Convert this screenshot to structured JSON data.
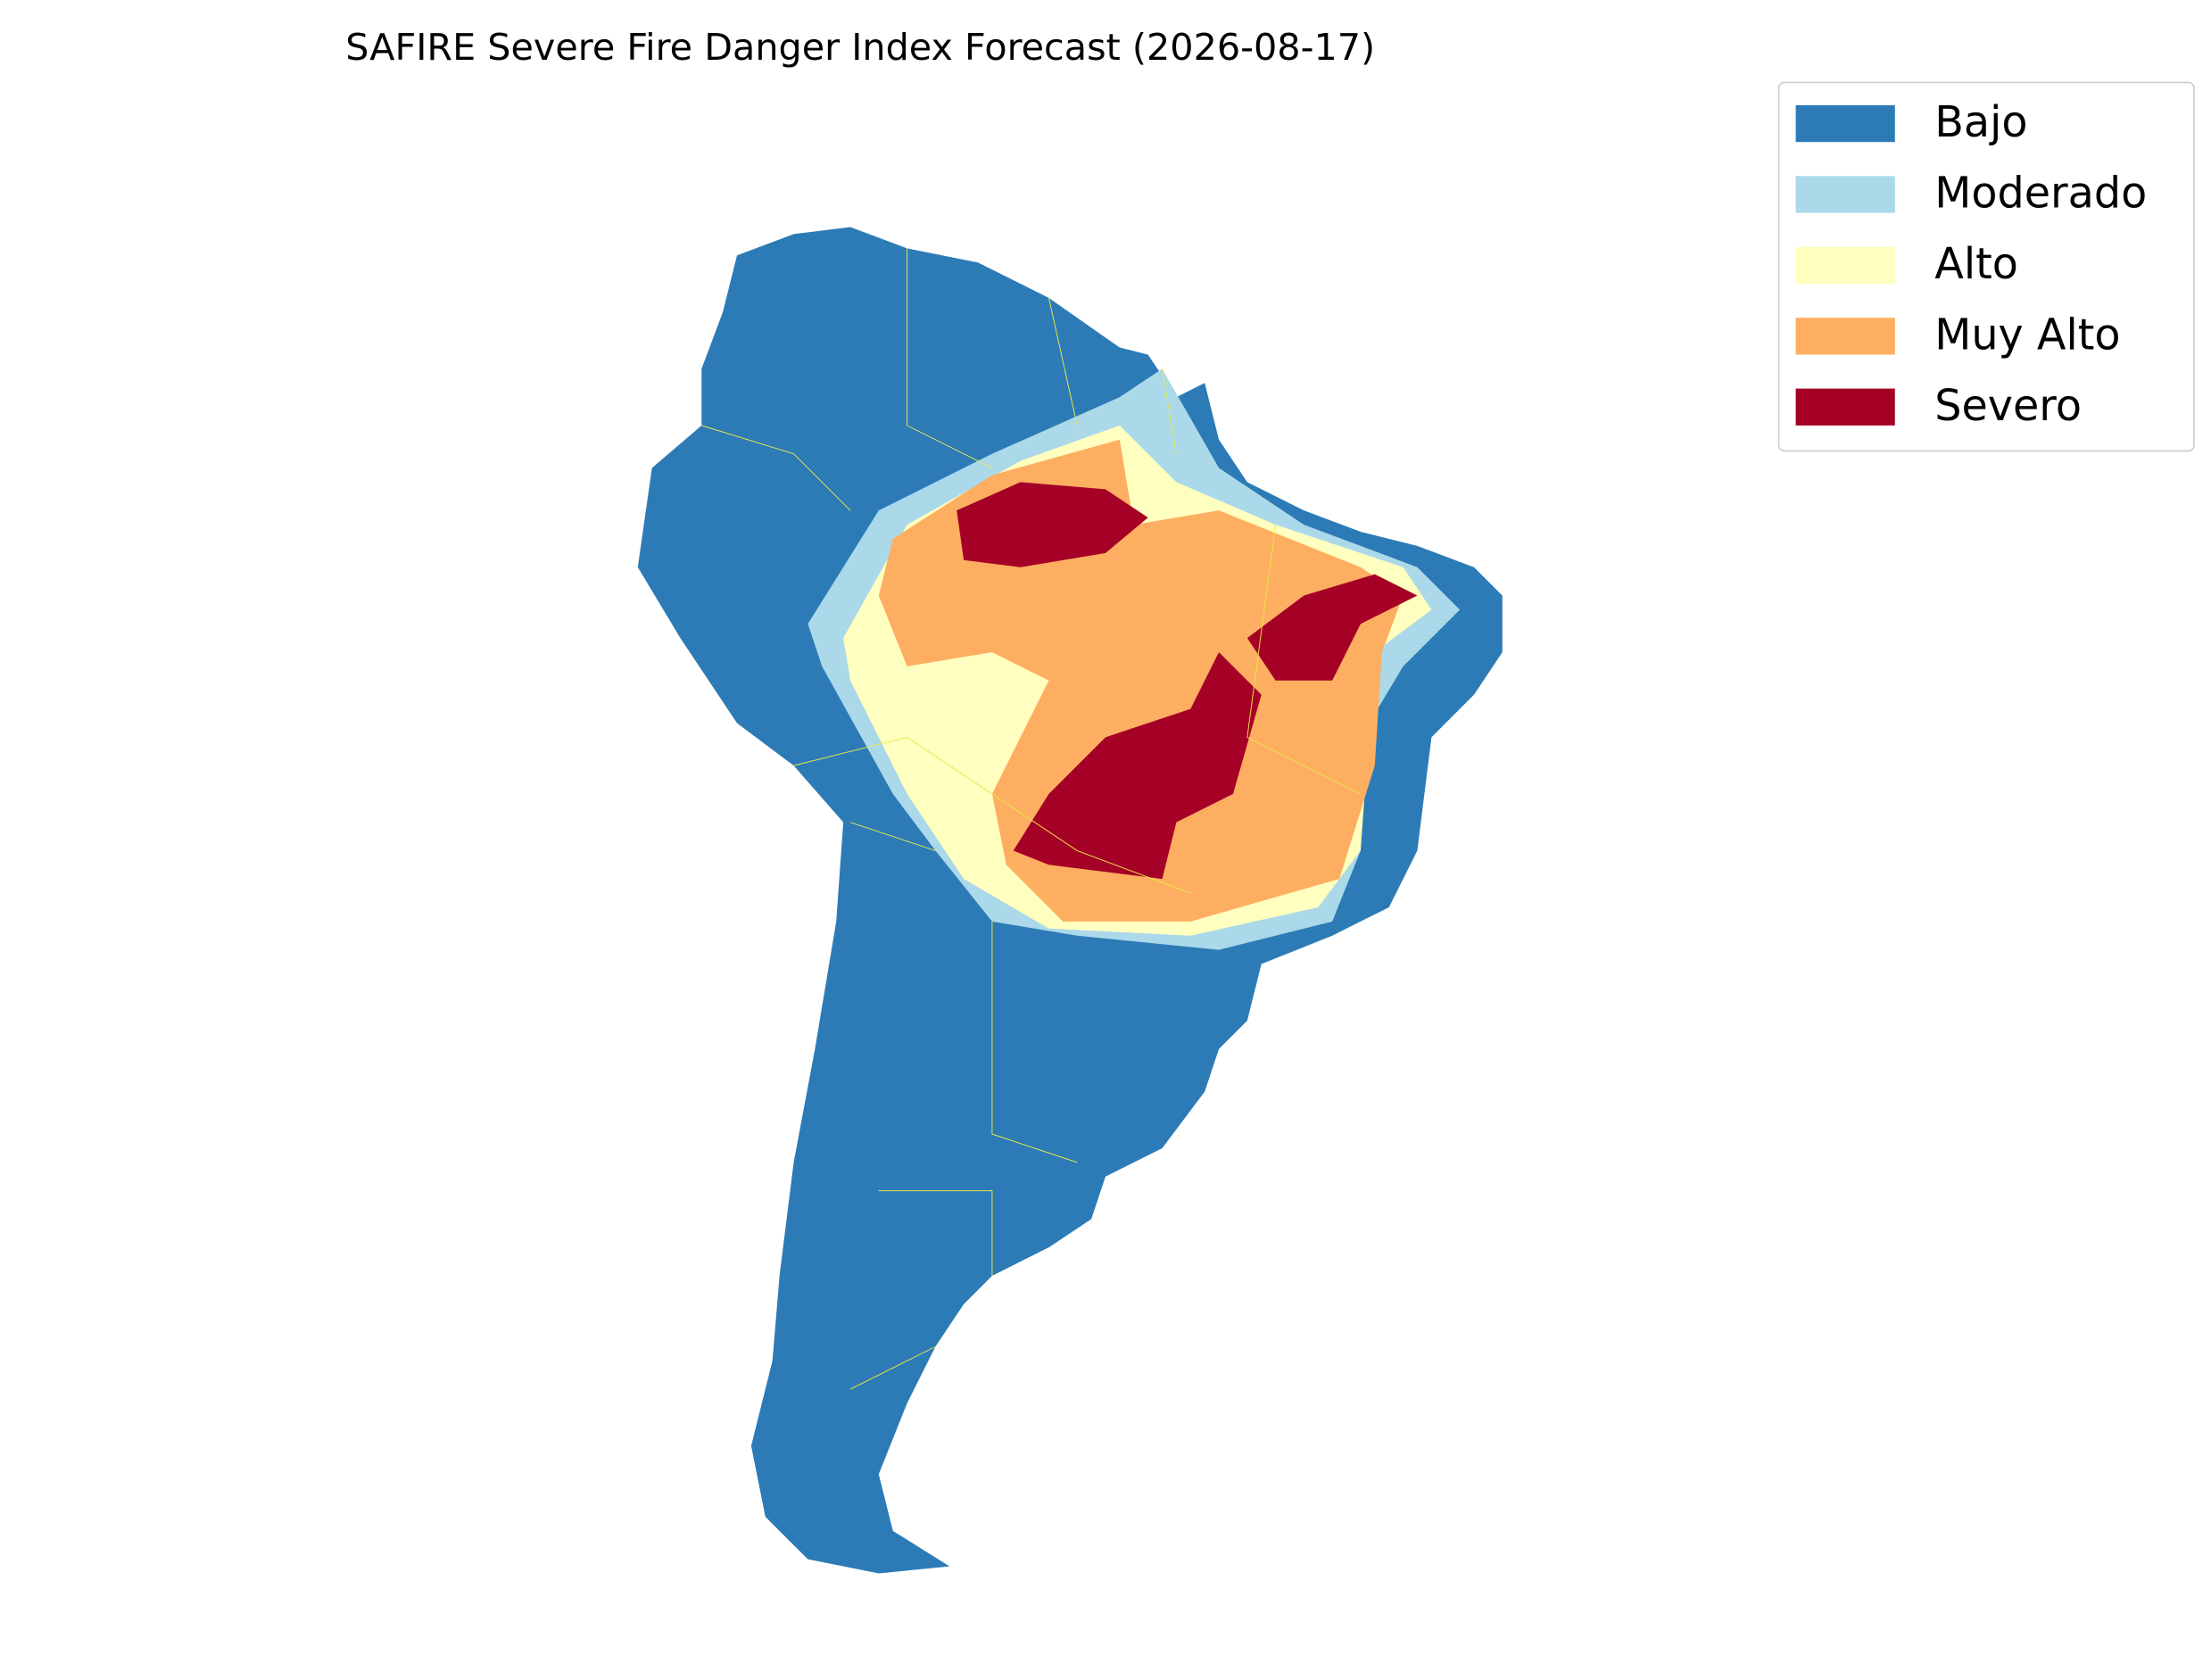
{
  "title": "SAFIRE Severe Fire Danger Index Forecast (2026-08-17)",
  "legend": {
    "items": [
      {
        "label": "Bajo",
        "color": "#2c7bb6"
      },
      {
        "label": "Moderado",
        "color": "#abd9e9"
      },
      {
        "label": "Alto",
        "color": "#ffffbf"
      },
      {
        "label": "Muy Alto",
        "color": "#fdae61"
      },
      {
        "label": "Severo",
        "color": "#a50026"
      }
    ]
  }
}
